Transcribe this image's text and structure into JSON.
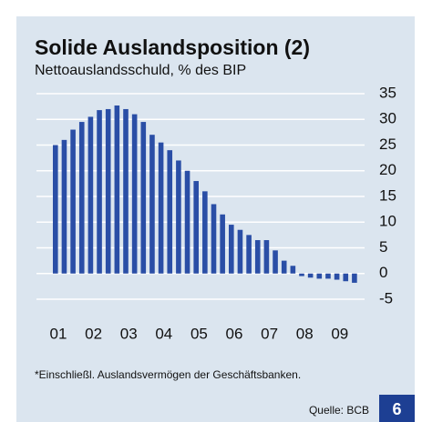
{
  "chart_data": {
    "type": "bar",
    "title": "Solide Auslandsposition (2)",
    "subtitle": "Nettoauslandsschuld, % des BIP",
    "categories": [
      "01",
      null,
      null,
      null,
      "02",
      null,
      null,
      null,
      "03",
      null,
      null,
      null,
      "04",
      null,
      null,
      null,
      "05",
      null,
      null,
      null,
      "06",
      null,
      null,
      null,
      "07",
      null,
      null,
      null,
      "08",
      null,
      null,
      null,
      "09",
      null,
      null
    ],
    "values": [
      25,
      26,
      28,
      29.5,
      30.5,
      31.8,
      32,
      32.7,
      32,
      31,
      29.5,
      27,
      25.5,
      24,
      22,
      20,
      18,
      16,
      13.5,
      11.5,
      9.5,
      8.5,
      7.5,
      6.5,
      6.5,
      4.5,
      2.5,
      1.5,
      -0.5,
      -0.8,
      -1,
      -1,
      -1.2,
      -1.5,
      -1.8
    ],
    "color": "#2a4ea6",
    "ylim": [
      -5,
      35
    ],
    "yticks": [
      -5,
      0,
      5,
      10,
      15,
      20,
      25,
      30,
      35
    ],
    "grid": true,
    "footnote": "*Einschließl. Auslandsvermögen der Geschäftsbanken.",
    "source": "Quelle: BCB",
    "page_number": "6"
  }
}
